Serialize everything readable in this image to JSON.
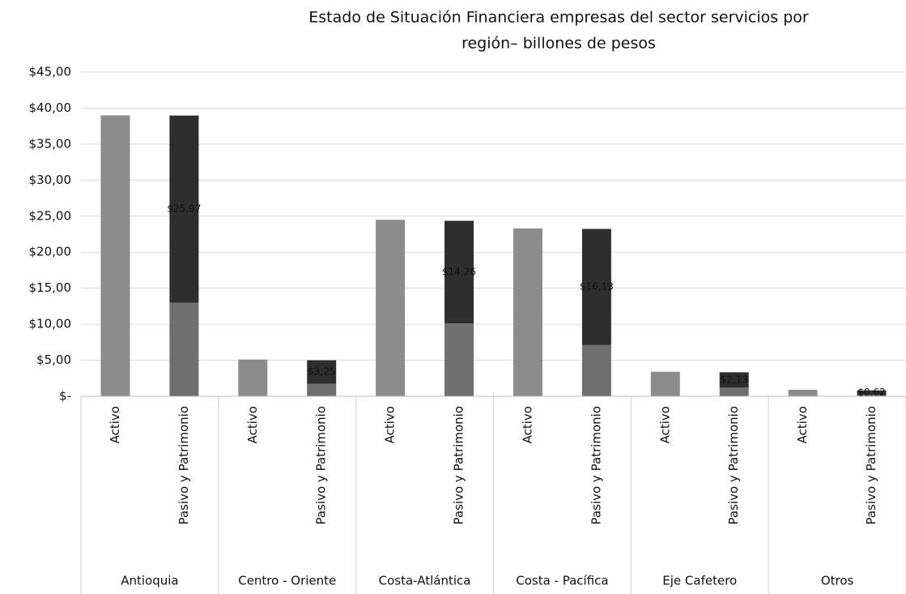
{
  "chart_data": {
    "type": "stacked_bar",
    "title": [
      "Estado de Situación Financiera empresas del sector servicios por",
      "región– billones de pesos"
    ],
    "groups": [
      "Antioquia",
      "Centro - Oriente",
      "Costa-Atlántica",
      "Costa - Pacífica",
      "Eje Cafetero",
      "Otros"
    ],
    "categories": [
      "Activo",
      "Pasivo y Patrimonio",
      "Activo",
      "Pasivo y Patrimonio",
      "Activo",
      "Pasivo y Patrimonio",
      "Activo",
      "Pasivo y Patrimonio",
      "Activo",
      "Pasivo y Patrimonio",
      "Activo",
      "Pasivo y Patrimonio"
    ],
    "series": [
      {
        "color": "#8c8c8c",
        "values": [
          39.0,
          null,
          5.1,
          null,
          24.5,
          null,
          23.3,
          null,
          3.4,
          null,
          0.9,
          null
        ]
      },
      {
        "color": "#6f6f6f",
        "values": [
          null,
          13.0,
          null,
          1.75,
          null,
          10.1,
          null,
          7.1,
          null,
          1.2,
          null,
          0.2
        ]
      },
      {
        "color": "#2e2e2e",
        "values": [
          null,
          25.97,
          null,
          3.25,
          null,
          14.26,
          null,
          16.13,
          null,
          2.13,
          null,
          0.62
        ],
        "value_labels": [
          null,
          "$25,97",
          null,
          "$3,25",
          null,
          "$14,26",
          null,
          "$16,13",
          null,
          "$2,13",
          null,
          "$0,62"
        ]
      }
    ],
    "ylim": [
      0,
      45
    ],
    "yticks": [
      {
        "value": 0,
        "label": "$-"
      },
      {
        "value": 5,
        "label": "$5,00"
      },
      {
        "value": 10,
        "label": "$10,00"
      },
      {
        "value": 15,
        "label": "$15,00"
      },
      {
        "value": 20,
        "label": "$20,00"
      },
      {
        "value": 25,
        "label": "$25,00"
      },
      {
        "value": 30,
        "label": "$30,00"
      },
      {
        "value": 35,
        "label": "$35,00"
      },
      {
        "value": 40,
        "label": "$40,00"
      },
      {
        "value": 45,
        "label": "$45,00"
      }
    ],
    "grid": true
  }
}
